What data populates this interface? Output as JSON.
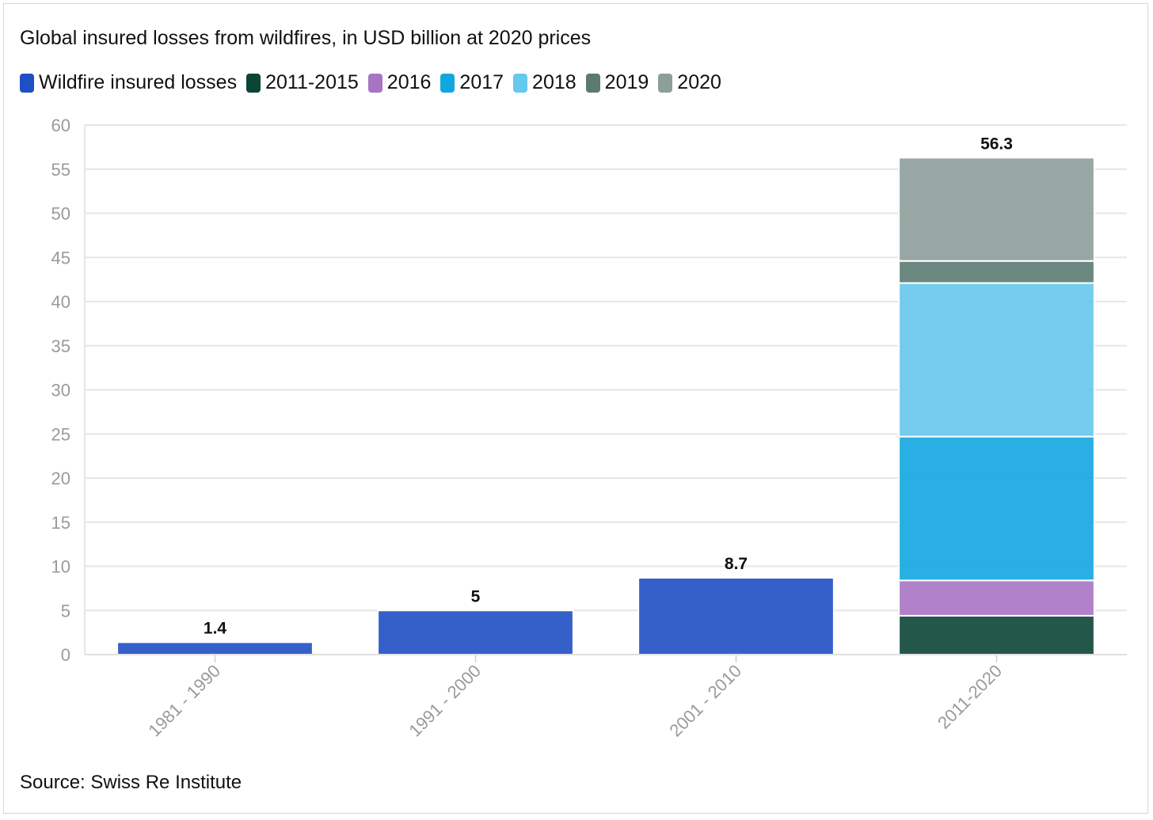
{
  "title": "Global insured losses from wildfires, in USD billion at 2020 prices",
  "source": "Source: Swiss Re Institute",
  "legend": [
    {
      "label": "Wildfire insured losses",
      "color": "#1f4fc4"
    },
    {
      "label": "2011-2015",
      "color": "#0b4535"
    },
    {
      "label": "2016",
      "color": "#a874c4"
    },
    {
      "label": "2017",
      "color": "#12a6e0"
    },
    {
      "label": "2018",
      "color": "#66c8ec"
    },
    {
      "label": "2019",
      "color": "#5b7b72"
    },
    {
      "label": "2020",
      "color": "#8e9e9a"
    }
  ],
  "chart_data": {
    "type": "bar",
    "stacked": true,
    "title": "Global insured losses from wildfires, in USD billion at 2020 prices",
    "categories": [
      "1981 - 1990",
      "1991 - 2000",
      "2001 - 2010",
      "2011-2020"
    ],
    "series": [
      {
        "name": "Wildfire insured losses",
        "color": "#1f4fc4",
        "values": [
          1.4,
          5,
          8.7,
          0
        ]
      },
      {
        "name": "2011-2015",
        "color": "#0b4535",
        "values": [
          0,
          0,
          0,
          4.4
        ]
      },
      {
        "name": "2016",
        "color": "#a874c4",
        "values": [
          0,
          0,
          0,
          4.0
        ]
      },
      {
        "name": "2017",
        "color": "#12a6e0",
        "values": [
          0,
          0,
          0,
          16.3
        ]
      },
      {
        "name": "2018",
        "color": "#66c8ec",
        "values": [
          0,
          0,
          0,
          17.4
        ]
      },
      {
        "name": "2019",
        "color": "#5b7b72",
        "values": [
          0,
          0,
          0,
          2.5
        ]
      },
      {
        "name": "2020",
        "color": "#8e9e9a",
        "values": [
          0,
          0,
          0,
          11.7
        ]
      }
    ],
    "totals": [
      "1.4",
      "5",
      "8.7",
      "56.3"
    ],
    "ylim": [
      0,
      60
    ],
    "yticks": [
      0,
      5,
      10,
      15,
      20,
      25,
      30,
      35,
      40,
      45,
      50,
      55,
      60
    ],
    "grid": true,
    "legend_position": "top-left"
  }
}
